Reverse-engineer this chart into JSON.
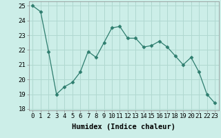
{
  "xlabel": "Humidex (Indice chaleur)",
  "x": [
    0,
    1,
    2,
    3,
    4,
    5,
    6,
    7,
    8,
    9,
    10,
    11,
    12,
    13,
    14,
    15,
    16,
    17,
    18,
    19,
    20,
    21,
    22,
    23
  ],
  "y": [
    25.0,
    24.6,
    21.9,
    19.0,
    19.5,
    19.8,
    20.5,
    21.9,
    21.5,
    22.5,
    23.5,
    23.6,
    22.8,
    22.8,
    22.2,
    22.3,
    22.6,
    22.2,
    21.6,
    21.0,
    21.5,
    20.5,
    19.0,
    18.4
  ],
  "line_color": "#2e7d6e",
  "marker": "D",
  "marker_size": 2.5,
  "background_color": "#cceee8",
  "grid_color": "#b0d8d0",
  "ylim": [
    17.9,
    25.3
  ],
  "xlim": [
    -0.5,
    23.5
  ],
  "yticks": [
    18,
    19,
    20,
    21,
    22,
    23,
    24,
    25
  ],
  "xticks": [
    0,
    1,
    2,
    3,
    4,
    5,
    6,
    7,
    8,
    9,
    10,
    11,
    12,
    13,
    14,
    15,
    16,
    17,
    18,
    19,
    20,
    21,
    22,
    23
  ],
  "xlabel_fontsize": 7.5,
  "tick_fontsize": 6.5
}
